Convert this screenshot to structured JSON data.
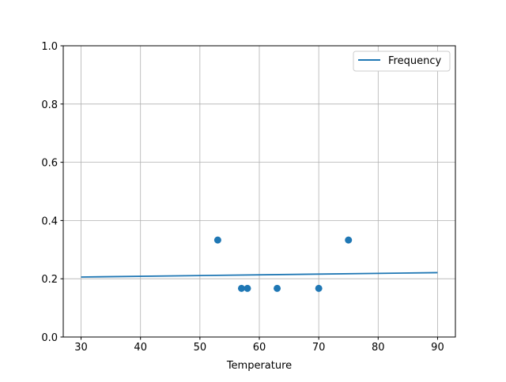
{
  "chart_data": {
    "type": "scatter",
    "title": "",
    "xlabel": "Temperature",
    "ylabel": "",
    "xlim": [
      27,
      93
    ],
    "ylim": [
      0,
      1.0
    ],
    "xticks": [
      30,
      40,
      50,
      60,
      70,
      80,
      90
    ],
    "yticks": [
      0.0,
      0.2,
      0.4,
      0.6,
      0.8,
      1.0
    ],
    "xtick_labels": [
      "30",
      "40",
      "50",
      "60",
      "70",
      "80",
      "90"
    ],
    "ytick_labels": [
      "0.0",
      "0.2",
      "0.4",
      "0.6",
      "0.8",
      "1.0"
    ],
    "grid": true,
    "legend_position": "top-right",
    "color": "#1f77b4",
    "series": [
      {
        "name": "Frequency",
        "type": "line",
        "x": [
          30,
          90
        ],
        "y": [
          0.206,
          0.221
        ]
      },
      {
        "type": "scatter",
        "x": [
          53,
          57,
          58,
          63,
          70,
          75
        ],
        "y": [
          0.333,
          0.167,
          0.167,
          0.167,
          0.167,
          0.333
        ]
      }
    ]
  }
}
